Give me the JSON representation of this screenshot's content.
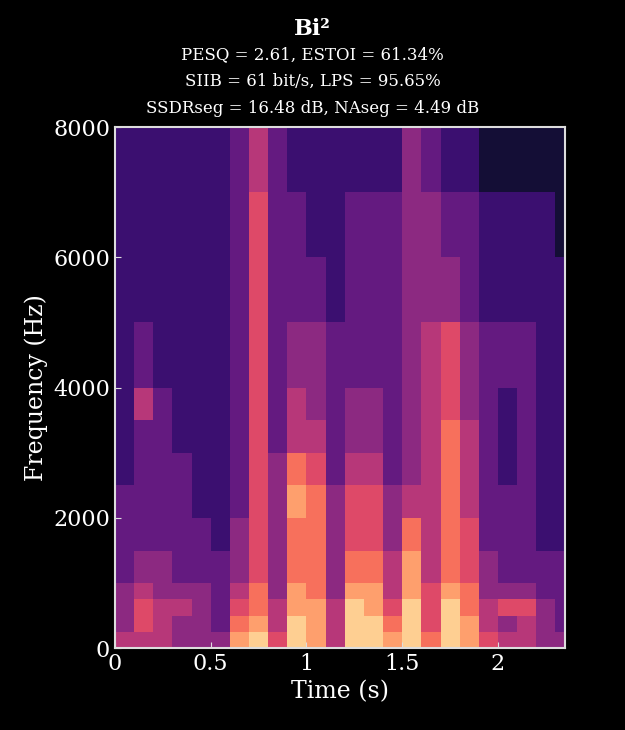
{
  "chart_data": {
    "type": "heatmap",
    "title": "Bi²",
    "subtitle": [
      "PESQ = 2.61, ESTOI = 61.34%",
      "SIIB = 61 bit/s, LPS = 95.65%",
      "SSDRseg = 16.48 dB, NAseg = 4.49 dB"
    ],
    "x_label": "Time (s)",
    "y_label": "Frequency (Hz)",
    "x_edges": [
      0,
      0.1,
      0.2,
      0.3,
      0.4,
      0.5,
      0.6,
      0.7,
      0.8,
      0.9,
      1.0,
      1.1,
      1.2,
      1.3,
      1.4,
      1.5,
      1.6,
      1.7,
      1.8,
      1.9,
      2.0,
      2.1,
      2.2,
      2.3,
      2.35
    ],
    "y_edges": [
      0,
      250,
      500,
      750,
      1000,
      1500,
      2000,
      2500,
      3000,
      3500,
      4000,
      5000,
      6000,
      7000,
      8000
    ],
    "cells": [
      [
        5,
        5,
        5,
        4,
        4,
        4,
        8,
        9,
        6,
        9,
        8,
        5,
        9,
        9,
        8,
        9,
        7,
        9,
        8,
        6,
        5,
        5,
        4,
        4
      ],
      [
        4,
        6,
        5,
        4,
        4,
        3,
        7,
        8,
        5,
        9,
        8,
        5,
        9,
        9,
        7,
        9,
        6,
        9,
        8,
        5,
        4,
        5,
        4,
        3
      ],
      [
        4,
        6,
        5,
        5,
        4,
        3,
        6,
        7,
        5,
        8,
        8,
        5,
        9,
        8,
        6,
        9,
        6,
        9,
        7,
        5,
        6,
        6,
        4,
        3
      ],
      [
        4,
        5,
        4,
        4,
        4,
        3,
        5,
        7,
        4,
        8,
        7,
        4,
        8,
        8,
        5,
        8,
        6,
        8,
        7,
        4,
        4,
        4,
        3,
        3
      ],
      [
        3,
        4,
        4,
        3,
        3,
        3,
        4,
        6,
        4,
        7,
        7,
        4,
        7,
        7,
        5,
        8,
        5,
        7,
        6,
        4,
        3,
        3,
        3,
        3
      ],
      [
        3,
        3,
        3,
        3,
        3,
        2,
        4,
        6,
        4,
        7,
        7,
        4,
        6,
        6,
        4,
        7,
        5,
        7,
        6,
        3,
        3,
        3,
        2,
        2
      ],
      [
        3,
        3,
        3,
        3,
        2,
        2,
        3,
        6,
        4,
        8,
        7,
        4,
        6,
        6,
        4,
        5,
        5,
        7,
        5,
        3,
        3,
        3,
        2,
        2
      ],
      [
        2,
        3,
        3,
        3,
        2,
        2,
        3,
        6,
        4,
        7,
        6,
        3,
        5,
        5,
        3,
        4,
        5,
        7,
        5,
        3,
        2,
        3,
        2,
        2
      ],
      [
        2,
        3,
        3,
        2,
        2,
        2,
        3,
        6,
        3,
        5,
        5,
        3,
        4,
        4,
        3,
        4,
        5,
        7,
        5,
        3,
        2,
        3,
        2,
        2
      ],
      [
        2,
        5,
        3,
        2,
        2,
        2,
        3,
        6,
        3,
        5,
        4,
        3,
        4,
        4,
        3,
        4,
        5,
        6,
        4,
        3,
        2,
        3,
        2,
        2
      ],
      [
        2,
        3,
        2,
        2,
        2,
        2,
        3,
        6,
        3,
        4,
        4,
        3,
        3,
        3,
        3,
        4,
        5,
        6,
        4,
        3,
        3,
        3,
        2,
        2
      ],
      [
        2,
        2,
        2,
        2,
        2,
        2,
        3,
        6,
        3,
        3,
        3,
        2,
        3,
        3,
        3,
        4,
        4,
        4,
        3,
        2,
        2,
        2,
        2,
        2
      ],
      [
        2,
        2,
        2,
        2,
        2,
        2,
        3,
        6,
        3,
        3,
        2,
        2,
        3,
        3,
        3,
        4,
        4,
        3,
        3,
        2,
        2,
        2,
        2,
        1
      ],
      [
        2,
        2,
        2,
        2,
        2,
        2,
        3,
        5,
        3,
        2,
        2,
        2,
        2,
        2,
        2,
        4,
        3,
        2,
        2,
        1,
        1,
        1,
        1,
        1
      ]
    ],
    "color_range": [
      0,
      10
    ],
    "xlim": [
      0,
      2.35
    ],
    "xticks": [
      0,
      0.5,
      1,
      1.5,
      2
    ],
    "ylim": [
      0,
      8000
    ],
    "yticks": [
      0,
      2000,
      4000,
      6000,
      8000
    ]
  }
}
